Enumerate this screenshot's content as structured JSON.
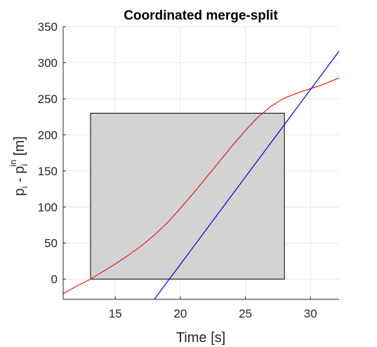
{
  "chart_data": {
    "type": "line",
    "title": "Coordinated merge-split",
    "xlabel": "Time [s]",
    "ylabel": {
      "p1": "p",
      "sub1": "i",
      "mid": " - p",
      "sub2": "i",
      "sup2": "in",
      "tail": " [m]"
    },
    "xlim": [
      11,
      32.2
    ],
    "ylim": [
      -28,
      350
    ],
    "xticks": [
      15,
      20,
      25,
      30
    ],
    "yticks": [
      0,
      50,
      100,
      150,
      200,
      250,
      300,
      350
    ],
    "grid": true,
    "colors": {
      "red_series": "#e41a1c",
      "blue_series": "#0000d0",
      "region_fill": "#d3d3d3",
      "region_stroke": "#000000",
      "grid": "#e6e6e6",
      "axis": "#262626"
    },
    "region": {
      "x": [
        13.1,
        28.0
      ],
      "y": [
        0,
        230
      ]
    },
    "series": [
      {
        "x": [
          11,
          12,
          13.1,
          14,
          15,
          16,
          17,
          18,
          19,
          20,
          21,
          22,
          23,
          24,
          25,
          26,
          27,
          28,
          29,
          30,
          31,
          32.2
        ],
        "y": [
          -20,
          -10,
          0,
          10,
          21,
          33,
          46,
          61,
          78,
          98,
          119,
          141,
          163,
          185,
          206,
          225,
          240,
          251,
          258,
          264,
          270,
          279
        ]
      },
      {
        "x": [
          18,
          32.2
        ],
        "y": [
          -28,
          316
        ]
      }
    ]
  }
}
